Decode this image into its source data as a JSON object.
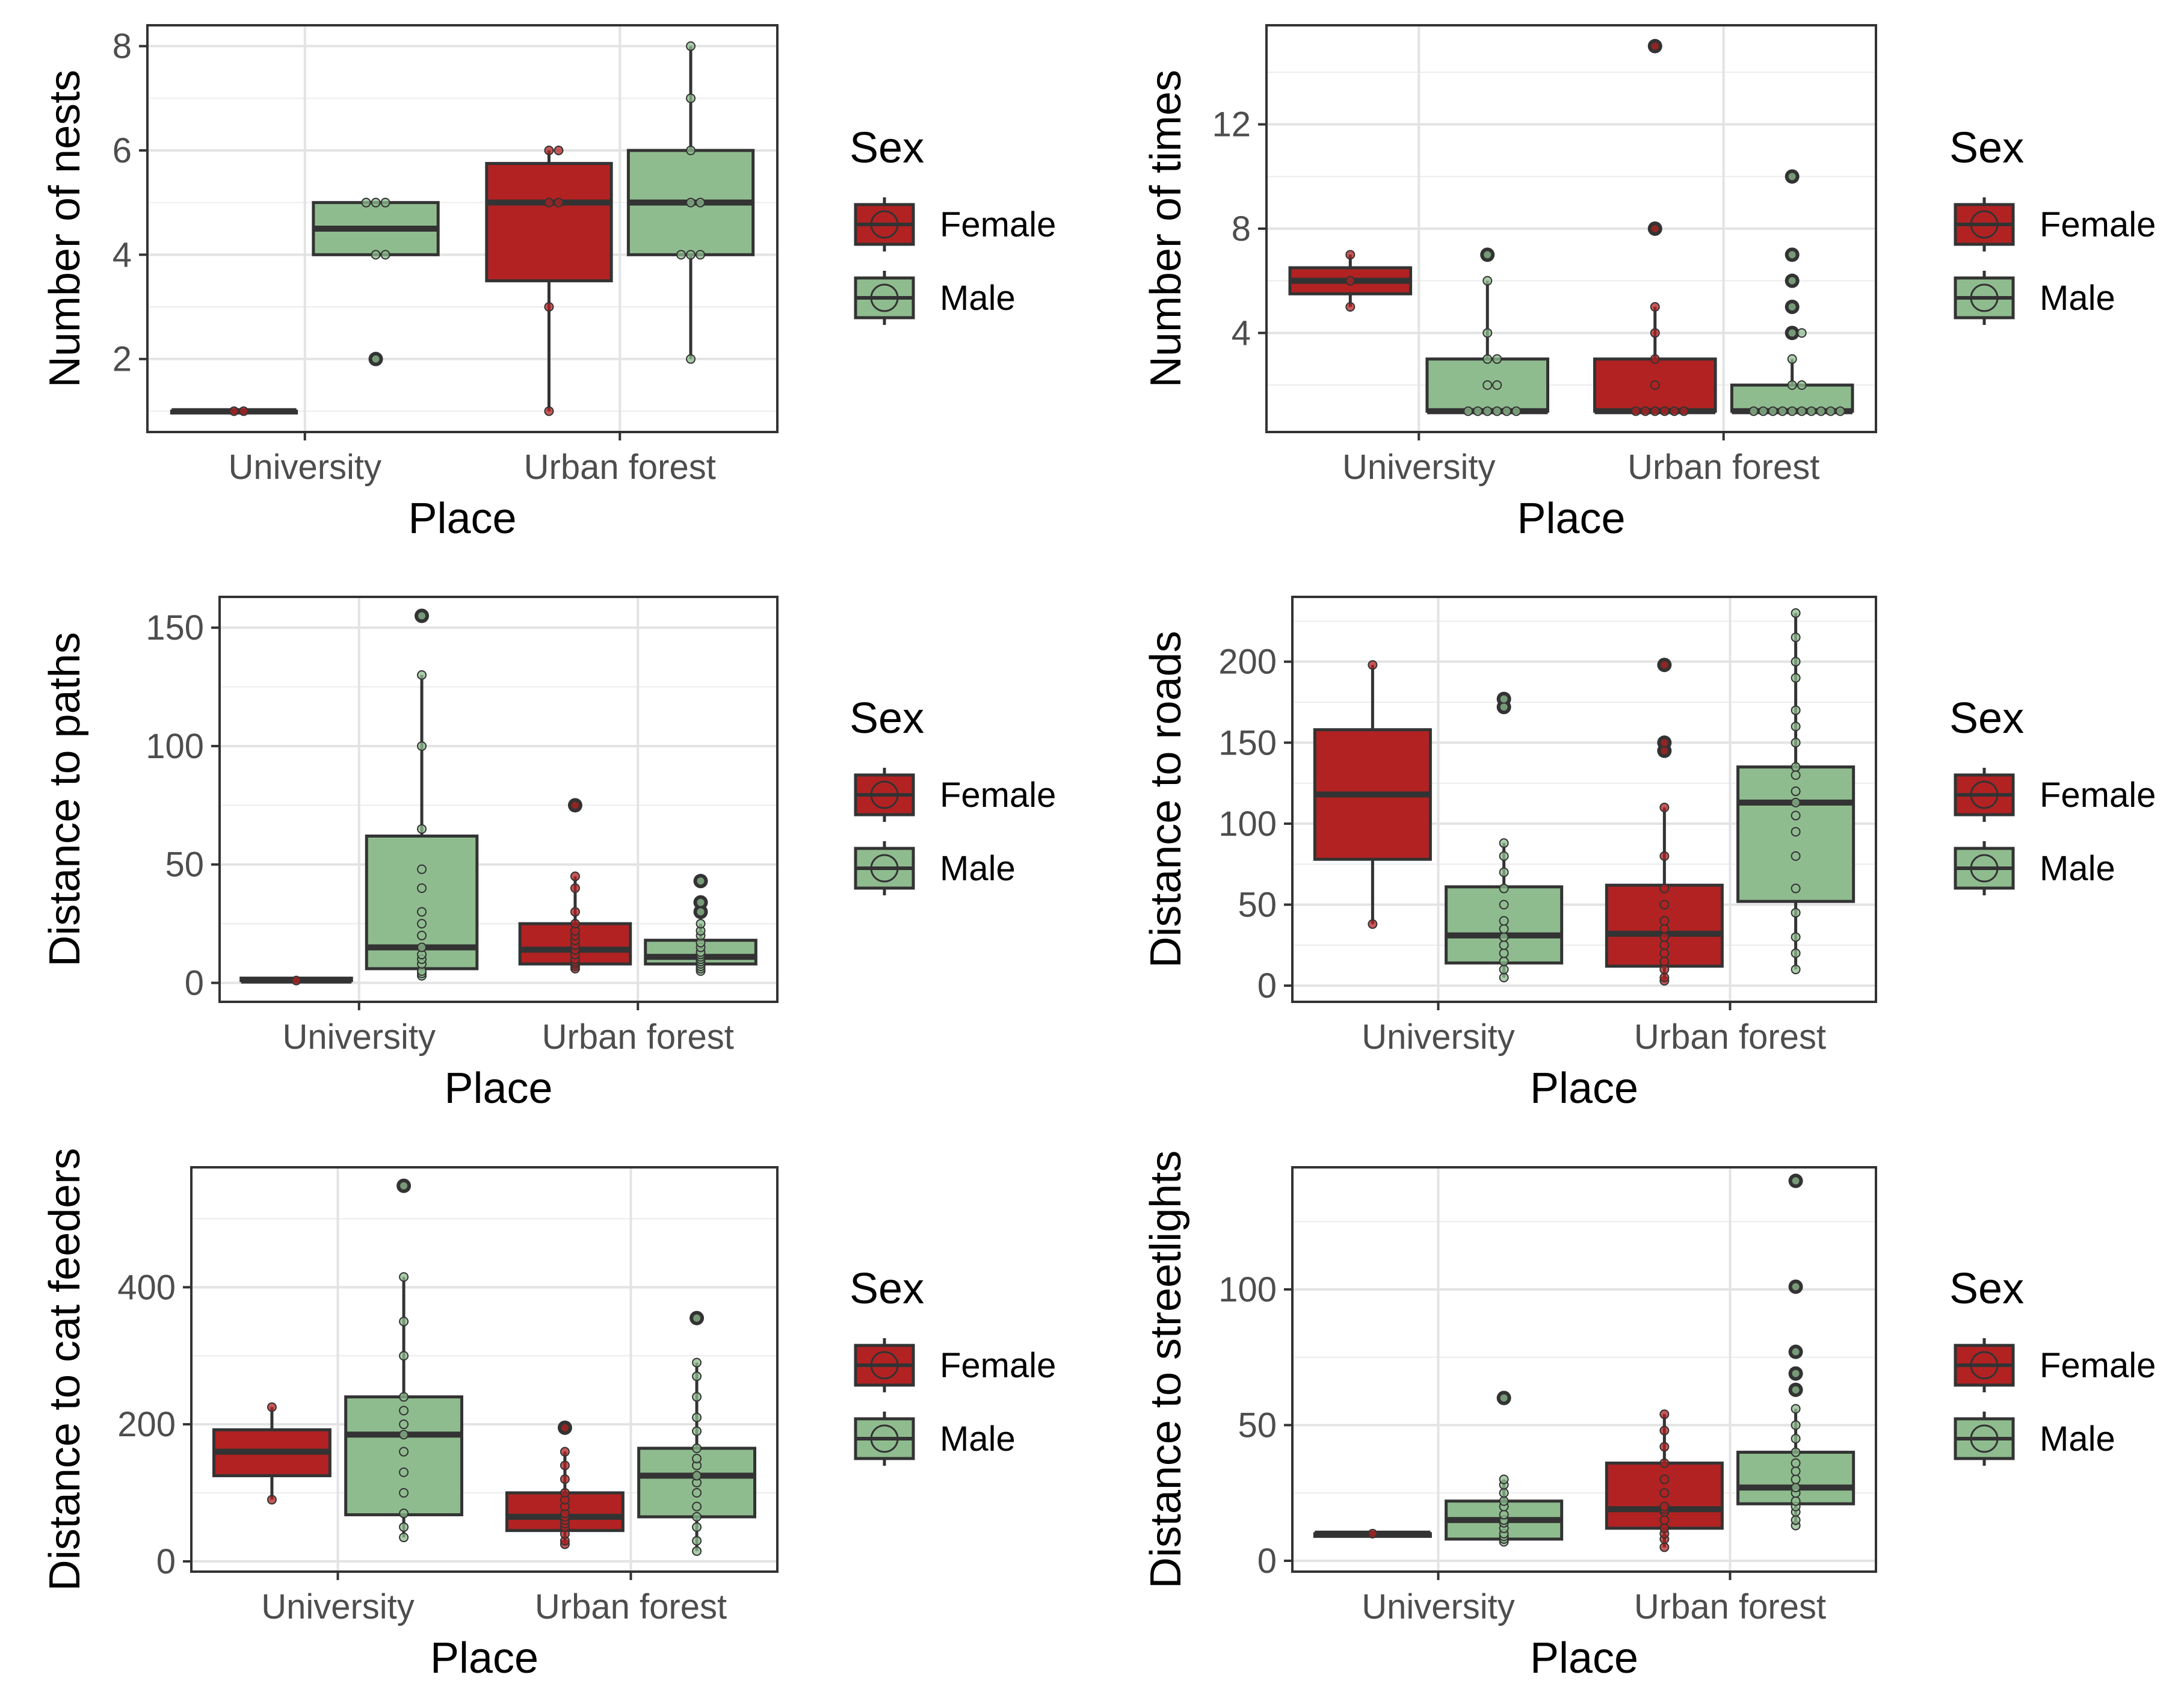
{
  "chart_data": [
    {
      "type": "box",
      "xlabel": "Place",
      "ylabel": "Number of nests",
      "categories": [
        "University",
        "Urban forest"
      ],
      "ylim": [
        0.6,
        8.4
      ],
      "yticks": [
        2,
        4,
        6,
        8
      ],
      "series": [
        {
          "name": "Female",
          "color": "#b22222",
          "boxes": [
            {
              "min": 1,
              "q1": 1,
              "median": 1,
              "q3": 1,
              "max": 1,
              "outliers": [],
              "points": [
                1,
                1
              ]
            },
            {
              "min": 1,
              "q1": 3.5,
              "median": 5,
              "q3": 5.75,
              "max": 6,
              "outliers": [],
              "points": [
                1,
                3,
                5,
                5,
                6,
                6
              ]
            }
          ]
        },
        {
          "name": "Male",
          "color": "#8fbc8f",
          "boxes": [
            {
              "min": 4,
              "q1": 4,
              "median": 4.5,
              "q3": 5,
              "max": 5,
              "outliers": [
                2
              ],
              "points": [
                2,
                4,
                4,
                5,
                5,
                5
              ]
            },
            {
              "min": 2,
              "q1": 4,
              "median": 5,
              "q3": 6,
              "max": 8,
              "outliers": [],
              "points": [
                2,
                4,
                4,
                4,
                5,
                5,
                6,
                7,
                8
              ]
            }
          ]
        }
      ],
      "legend": {
        "title": "Sex",
        "entries": [
          "Female",
          "Male"
        ]
      }
    },
    {
      "type": "box",
      "xlabel": "Place",
      "ylabel": "Number of times",
      "categories": [
        "University",
        "Urban forest"
      ],
      "ylim": [
        0.2,
        15.8
      ],
      "yticks": [
        4,
        8,
        12
      ],
      "series": [
        {
          "name": "Female",
          "color": "#b22222",
          "boxes": [
            {
              "min": 5,
              "q1": 5.5,
              "median": 6,
              "q3": 6.5,
              "max": 7,
              "outliers": [],
              "points": [
                5,
                6,
                7
              ]
            },
            {
              "min": 1,
              "q1": 1,
              "median": 1,
              "q3": 3,
              "max": 5,
              "outliers": [
                8,
                15
              ],
              "points": [
                1,
                1,
                1,
                1,
                1,
                1,
                2,
                3,
                4,
                5,
                8,
                15
              ]
            }
          ]
        },
        {
          "name": "Male",
          "color": "#8fbc8f",
          "boxes": [
            {
              "min": 1,
              "q1": 1,
              "median": 1,
              "q3": 3,
              "max": 6,
              "outliers": [
                7
              ],
              "points": [
                1,
                1,
                1,
                1,
                1,
                1,
                2,
                2,
                3,
                3,
                4,
                6,
                7
              ]
            },
            {
              "min": 1,
              "q1": 1,
              "median": 1,
              "q3": 2,
              "max": 3,
              "outliers": [
                4,
                5,
                6,
                7,
                10
              ],
              "points": [
                1,
                1,
                1,
                1,
                1,
                1,
                1,
                1,
                1,
                1,
                2,
                2,
                3,
                4,
                4,
                5,
                6,
                7,
                10
              ]
            }
          ]
        }
      ],
      "legend": {
        "title": "Sex",
        "entries": [
          "Female",
          "Male"
        ]
      }
    },
    {
      "type": "box",
      "xlabel": "Place",
      "ylabel": "Distance to paths",
      "categories": [
        "University",
        "Urban forest"
      ],
      "ylim": [
        -8,
        163
      ],
      "yticks": [
        0,
        50,
        100,
        150
      ],
      "series": [
        {
          "name": "Female",
          "color": "#b22222",
          "boxes": [
            {
              "min": 1,
              "q1": 1,
              "median": 1,
              "q3": 2,
              "max": 2,
              "outliers": [],
              "points": [
                1
              ]
            },
            {
              "min": 6,
              "q1": 8,
              "median": 14,
              "q3": 25,
              "max": 45,
              "outliers": [
                75
              ],
              "points": [
                6,
                7,
                8,
                9,
                10,
                12,
                14,
                16,
                18,
                20,
                22,
                25,
                30,
                40,
                45,
                75
              ]
            }
          ]
        },
        {
          "name": "Male",
          "color": "#8fbc8f",
          "boxes": [
            {
              "min": 3,
              "q1": 6,
              "median": 15,
              "q3": 62,
              "max": 130,
              "outliers": [
                155
              ],
              "points": [
                3,
                4,
                5,
                8,
                10,
                12,
                15,
                20,
                25,
                30,
                40,
                48,
                65,
                100,
                130,
                155
              ]
            },
            {
              "min": 5,
              "q1": 8,
              "median": 11,
              "q3": 18,
              "max": 25,
              "outliers": [
                30,
                34,
                43
              ],
              "points": [
                5,
                6,
                7,
                8,
                9,
                10,
                11,
                12,
                13,
                15,
                17,
                20,
                22,
                25,
                30,
                34,
                43
              ]
            }
          ]
        }
      ],
      "legend": {
        "title": "Sex",
        "entries": [
          "Female",
          "Male"
        ]
      }
    },
    {
      "type": "box",
      "xlabel": "Place",
      "ylabel": "Distance to roads",
      "categories": [
        "University",
        "Urban forest"
      ],
      "ylim": [
        -10,
        240
      ],
      "yticks": [
        0,
        50,
        100,
        150,
        200
      ],
      "series": [
        {
          "name": "Female",
          "color": "#b22222",
          "boxes": [
            {
              "min": 38,
              "q1": 78,
              "median": 118,
              "q3": 158,
              "max": 198,
              "outliers": [],
              "points": [
                38,
                198
              ]
            },
            {
              "min": 3,
              "q1": 12,
              "median": 32,
              "q3": 62,
              "max": 110,
              "outliers": [
                145,
                150,
                198
              ],
              "points": [
                3,
                5,
                10,
                15,
                20,
                25,
                30,
                35,
                40,
                50,
                60,
                80,
                110,
                145,
                150,
                198
              ]
            }
          ]
        },
        {
          "name": "Male",
          "color": "#8fbc8f",
          "boxes": [
            {
              "min": 5,
              "q1": 14,
              "median": 31,
              "q3": 61,
              "max": 88,
              "outliers": [
                172,
                177
              ],
              "points": [
                5,
                10,
                15,
                20,
                25,
                30,
                35,
                40,
                50,
                60,
                70,
                80,
                88,
                172,
                177
              ]
            },
            {
              "min": 10,
              "q1": 52,
              "median": 113,
              "q3": 135,
              "max": 230,
              "outliers": [],
              "points": [
                10,
                20,
                30,
                45,
                60,
                80,
                95,
                105,
                113,
                120,
                130,
                135,
                150,
                160,
                170,
                190,
                200,
                215,
                230
              ]
            }
          ]
        }
      ],
      "legend": {
        "title": "Sex",
        "entries": [
          "Female",
          "Male"
        ]
      }
    },
    {
      "type": "box",
      "xlabel": "Place",
      "ylabel": "Distance to cat feeders",
      "categories": [
        "University",
        "Urban forest"
      ],
      "ylim": [
        -15,
        575
      ],
      "yticks": [
        0,
        200,
        400
      ],
      "series": [
        {
          "name": "Female",
          "color": "#b22222",
          "boxes": [
            {
              "min": 90,
              "q1": 125,
              "median": 160,
              "q3": 192,
              "max": 225,
              "outliers": [],
              "points": [
                90,
                225
              ]
            },
            {
              "min": 25,
              "q1": 45,
              "median": 65,
              "q3": 100,
              "max": 160,
              "outliers": [
                195
              ],
              "points": [
                25,
                30,
                40,
                50,
                55,
                60,
                65,
                70,
                80,
                90,
                100,
                120,
                140,
                160,
                195
              ]
            }
          ]
        },
        {
          "name": "Male",
          "color": "#8fbc8f",
          "boxes": [
            {
              "min": 35,
              "q1": 68,
              "median": 185,
              "q3": 240,
              "max": 415,
              "outliers": [
                548
              ],
              "points": [
                35,
                50,
                70,
                100,
                130,
                160,
                185,
                200,
                220,
                240,
                300,
                350,
                415,
                548
              ]
            },
            {
              "min": 15,
              "q1": 65,
              "median": 125,
              "q3": 165,
              "max": 290,
              "outliers": [
                355
              ],
              "points": [
                15,
                30,
                50,
                65,
                80,
                100,
                115,
                125,
                140,
                150,
                165,
                190,
                210,
                240,
                270,
                290,
                355
              ]
            }
          ]
        }
      ],
      "legend": {
        "title": "Sex",
        "entries": [
          "Female",
          "Male"
        ]
      }
    },
    {
      "type": "box",
      "xlabel": "Place",
      "ylabel": "Distance to streetlights",
      "categories": [
        "University",
        "Urban forest"
      ],
      "ylim": [
        -4,
        145
      ],
      "yticks": [
        0,
        50,
        100
      ],
      "series": [
        {
          "name": "Female",
          "color": "#b22222",
          "boxes": [
            {
              "min": 9,
              "q1": 9,
              "median": 10,
              "q3": 10,
              "max": 10,
              "outliers": [],
              "points": [
                10
              ]
            },
            {
              "min": 5,
              "q1": 12,
              "median": 19,
              "q3": 36,
              "max": 54,
              "outliers": [],
              "points": [
                5,
                8,
                10,
                12,
                15,
                18,
                19,
                20,
                25,
                30,
                36,
                42,
                48,
                54
              ]
            }
          ]
        },
        {
          "name": "Male",
          "color": "#8fbc8f",
          "boxes": [
            {
              "min": 7,
              "q1": 8,
              "median": 15,
              "q3": 22,
              "max": 30,
              "outliers": [
                60
              ],
              "points": [
                7,
                8,
                9,
                10,
                12,
                14,
                15,
                17,
                20,
                22,
                25,
                28,
                30,
                60
              ]
            },
            {
              "min": 13,
              "q1": 21,
              "median": 27,
              "q3": 40,
              "max": 56,
              "outliers": [
                63,
                69,
                77,
                101,
                140
              ],
              "points": [
                13,
                15,
                18,
                20,
                22,
                25,
                27,
                30,
                33,
                36,
                40,
                45,
                50,
                56,
                63,
                69,
                77,
                101,
                140
              ]
            }
          ]
        }
      ],
      "legend": {
        "title": "Sex",
        "entries": [
          "Female",
          "Male"
        ]
      }
    }
  ]
}
